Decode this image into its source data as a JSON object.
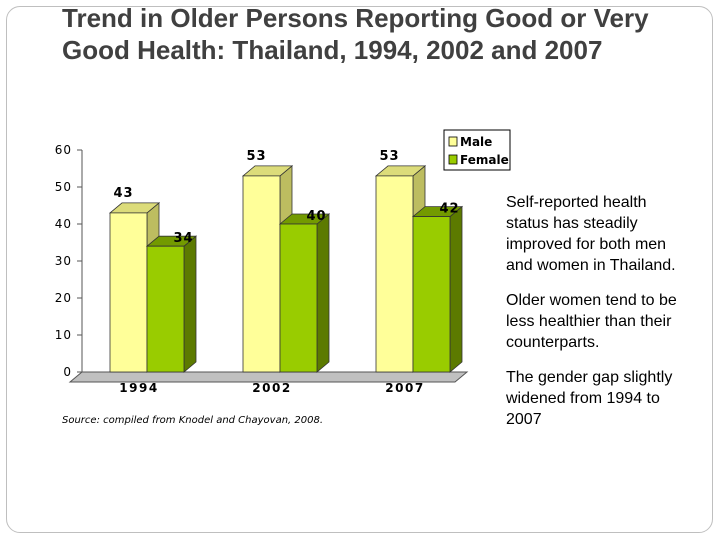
{
  "title": "Trend in Older Persons Reporting Good or Very Good Health: Thailand, 1994, 2002 and 2007",
  "source": "Source: compiled from Knodel and Chayovan, 2008.",
  "notes": [
    "Self-reported health status has steadily improved for both men and women in Thailand.",
    "Older women tend to be less healthier than their counterparts.",
    "The gender gap slightly widened from 1994 to 2007"
  ],
  "chart_data": {
    "type": "bar",
    "categories": [
      "1994",
      "2002",
      "2007"
    ],
    "series": [
      {
        "name": "Male",
        "values": [
          43,
          53,
          53
        ],
        "color": "#ffff99",
        "side_color": "#bdbd60",
        "top_color": "#dcdc7a"
      },
      {
        "name": "Female",
        "values": [
          34,
          40,
          42
        ],
        "color": "#99cc00",
        "side_color": "#5c7a00",
        "top_color": "#739a00"
      }
    ],
    "ylim": [
      0,
      60
    ],
    "yticks": [
      0,
      10,
      20,
      30,
      40,
      50,
      60
    ],
    "legend_position": "top-right",
    "grid": false,
    "style": "3d-clustered-column"
  }
}
